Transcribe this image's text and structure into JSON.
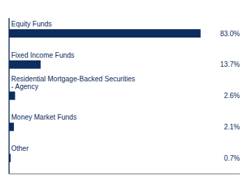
{
  "chart_data": {
    "type": "bar",
    "orientation": "horizontal",
    "categories": [
      "Equity Funds",
      "Fixed Income Funds",
      "Residential Mortgage-Backed Securities\n- Agency",
      "Money Market Funds",
      "Other"
    ],
    "values": [
      83.0,
      13.7,
      2.6,
      2.1,
      0.7
    ],
    "value_labels": [
      "83.0%",
      "13.7%",
      "2.6%",
      "2.1%",
      "0.7%"
    ],
    "data_labels": true,
    "color": "#0d2d5e",
    "xlim": [
      0,
      100
    ],
    "tick_labels": false
  }
}
